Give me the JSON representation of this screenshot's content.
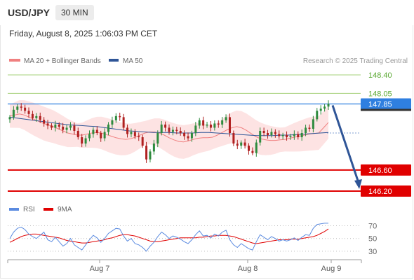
{
  "header": {
    "symbol": "USD/JPY",
    "timeframe": "30 MIN",
    "datetime": "Friday, August 8, 2025 1:06:03 PM CET"
  },
  "legend": {
    "ma20_label": "MA 20 + Bollinger Bands",
    "ma50_label": "MA 50",
    "credit": "Research © 2025 Trading Central",
    "rsi_label": "RSI",
    "ma9_label": "9MA"
  },
  "colors": {
    "ma20": "#f08080",
    "ma50": "#2f5597",
    "bands_fill": "#fddede",
    "candle_up": "#2e8b3e",
    "candle_down": "#b02020",
    "resistance_line": "#a5d07a",
    "current_price": "#2f7fe0",
    "support_line": "#e00000",
    "arrow": "#2f5597",
    "rsi": "#5b8be0",
    "rsi_ma": "#e00000"
  },
  "chart_data": [
    {
      "type": "candlestick",
      "title": "USD/JPY 30 MIN",
      "x_tick_labels": [
        "Aug 7",
        "Aug 8",
        "Aug 9"
      ],
      "ylim": [
        146.1,
        148.5
      ],
      "levels": [
        {
          "label": "148.40",
          "value": 148.4,
          "kind": "resistance"
        },
        {
          "label": "148.05",
          "value": 148.05,
          "kind": "resistance"
        },
        {
          "label": "147.85",
          "value": 147.85,
          "kind": "current"
        },
        {
          "label": "146.60",
          "value": 146.6,
          "kind": "support"
        },
        {
          "label": "146.20",
          "value": 146.2,
          "kind": "support"
        }
      ],
      "closes": [
        147.6,
        147.74,
        147.8,
        147.78,
        147.72,
        147.66,
        147.58,
        147.62,
        147.55,
        147.48,
        147.44,
        147.4,
        147.46,
        147.42,
        147.36,
        147.4,
        147.44,
        147.34,
        147.22,
        147.1,
        147.2,
        147.28,
        147.36,
        147.3,
        147.2,
        147.32,
        147.46,
        147.54,
        147.62,
        147.6,
        147.4,
        147.28,
        147.32,
        147.24,
        147.22,
        147.06,
        146.8,
        146.95,
        147.1,
        147.3,
        147.46,
        147.4,
        147.32,
        147.36,
        147.34,
        147.3,
        147.24,
        147.2,
        147.3,
        147.44,
        147.54,
        147.44,
        147.46,
        147.4,
        147.48,
        147.46,
        147.54,
        147.6,
        147.3,
        147.1,
        147.06,
        147.12,
        147.06,
        146.96,
        146.92,
        147.12,
        147.34,
        147.3,
        147.26,
        147.32,
        147.28,
        147.24,
        147.26,
        147.22,
        147.24,
        147.28,
        147.22,
        147.3,
        147.4,
        147.38,
        147.56,
        147.72,
        147.76,
        147.8,
        147.85
      ],
      "moving_averages": [
        {
          "name": "MA 20",
          "values": [
            147.62,
            147.64,
            147.66,
            147.64,
            147.6,
            147.56,
            147.52,
            147.48,
            147.45,
            147.42,
            147.38,
            147.34,
            147.3,
            147.28,
            147.26,
            147.26,
            147.28,
            147.3,
            147.31,
            147.3,
            147.27,
            147.24,
            147.21,
            147.19,
            147.18,
            147.19,
            147.22,
            147.26,
            147.3,
            147.32,
            147.32,
            147.3,
            147.26,
            147.21,
            147.17,
            147.14,
            147.13,
            147.15,
            147.18,
            147.2,
            147.21,
            147.21,
            147.22,
            147.26,
            147.31,
            147.36,
            147.4,
            147.42,
            147.4,
            147.35,
            147.29,
            147.23,
            147.19,
            147.17,
            147.16,
            147.16,
            147.17,
            147.18,
            147.2,
            147.22,
            147.24,
            147.26,
            147.28,
            147.29,
            147.3,
            147.4,
            147.5
          ]
        },
        {
          "name": "MA 50",
          "values": [
            147.6,
            147.58,
            147.56,
            147.54,
            147.52,
            147.5,
            147.48,
            147.46,
            147.45,
            147.44,
            147.43,
            147.42,
            147.4,
            147.38,
            147.36,
            147.34,
            147.33,
            147.32,
            147.31,
            147.31,
            147.31,
            147.3,
            147.3,
            147.3,
            147.31,
            147.31,
            147.3,
            147.29,
            147.28,
            147.27,
            147.26,
            147.25,
            147.25,
            147.25,
            147.26,
            147.26,
            147.27,
            147.28,
            147.29,
            147.3,
            147.31
          ]
        }
      ],
      "forecast": {
        "from": 147.85,
        "to": 146.2
      }
    },
    {
      "type": "line",
      "title": "RSI",
      "ylim": [
        20,
        75
      ],
      "y_tick_labels": [
        "70",
        "50",
        "30"
      ],
      "series": [
        {
          "name": "RSI",
          "values": [
            50,
            60,
            66,
            68,
            64,
            57,
            53,
            50,
            55,
            60,
            48,
            45,
            52,
            45,
            38,
            42,
            50,
            40,
            36,
            32,
            40,
            48,
            55,
            51,
            44,
            50,
            58,
            62,
            66,
            65,
            54,
            46,
            50,
            42,
            40,
            36,
            30,
            38,
            44,
            53,
            60,
            56,
            50,
            54,
            52,
            49,
            45,
            42,
            48,
            56,
            62,
            54,
            55,
            51,
            57,
            54,
            60,
            63,
            48,
            40,
            36,
            42,
            38,
            34,
            32,
            45,
            56,
            52,
            48,
            53,
            50,
            46,
            48,
            46,
            48,
            51,
            47,
            52,
            56,
            55,
            66,
            72,
            73,
            74,
            74
          ]
        },
        {
          "name": "9MA",
          "values": [
            44,
            47,
            50,
            53,
            55,
            56,
            57,
            57,
            56,
            55,
            54,
            53,
            52,
            51,
            49,
            47,
            46,
            45,
            44,
            43,
            43,
            44,
            45,
            46,
            47,
            48,
            50,
            51,
            53,
            55,
            56,
            56,
            55,
            54,
            52,
            50,
            48,
            46,
            45,
            45,
            46,
            47,
            48,
            49,
            50,
            51,
            51,
            51,
            51,
            51,
            52,
            52,
            53,
            54,
            54,
            55,
            55,
            55,
            54,
            53,
            51,
            49,
            47,
            45,
            43,
            42,
            43,
            44,
            45,
            46,
            47,
            48,
            48,
            48,
            49,
            49,
            49,
            50,
            51,
            52,
            53,
            55,
            58,
            61,
            65
          ]
        }
      ]
    }
  ]
}
